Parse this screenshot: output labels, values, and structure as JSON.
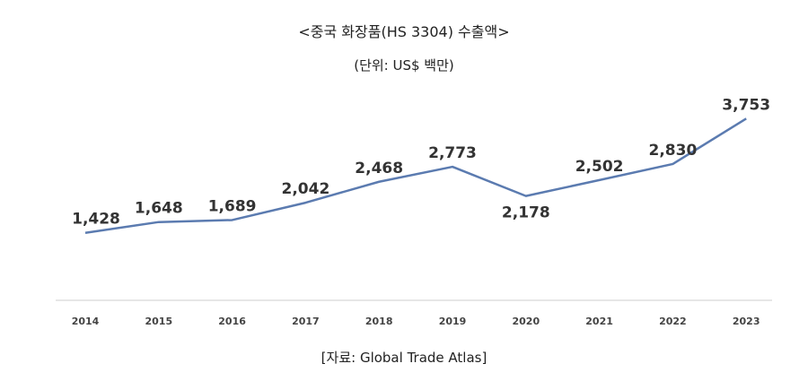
{
  "chart_data": {
    "type": "line",
    "title": "<중국 화장품(HS 3304) 수출액>",
    "subtitle": "(단위: US$ 백만)",
    "source": "[자료: Global Trade Atlas]",
    "categories": [
      "2014",
      "2015",
      "2016",
      "2017",
      "2018",
      "2019",
      "2020",
      "2021",
      "2022",
      "2023"
    ],
    "values": [
      1428,
      1648,
      1689,
      2042,
      2468,
      2773,
      2178,
      2502,
      2830,
      3753
    ],
    "value_labels": [
      "1,428",
      "1,648",
      "1,689",
      "2,042",
      "2,468",
      "2,773",
      "2,178",
      "2,502",
      "2,830",
      "3,753"
    ],
    "ylim": [
      0,
      4000
    ],
    "grid": false,
    "line_color": "#5b7bb0",
    "axis_color": "#cccccc"
  }
}
